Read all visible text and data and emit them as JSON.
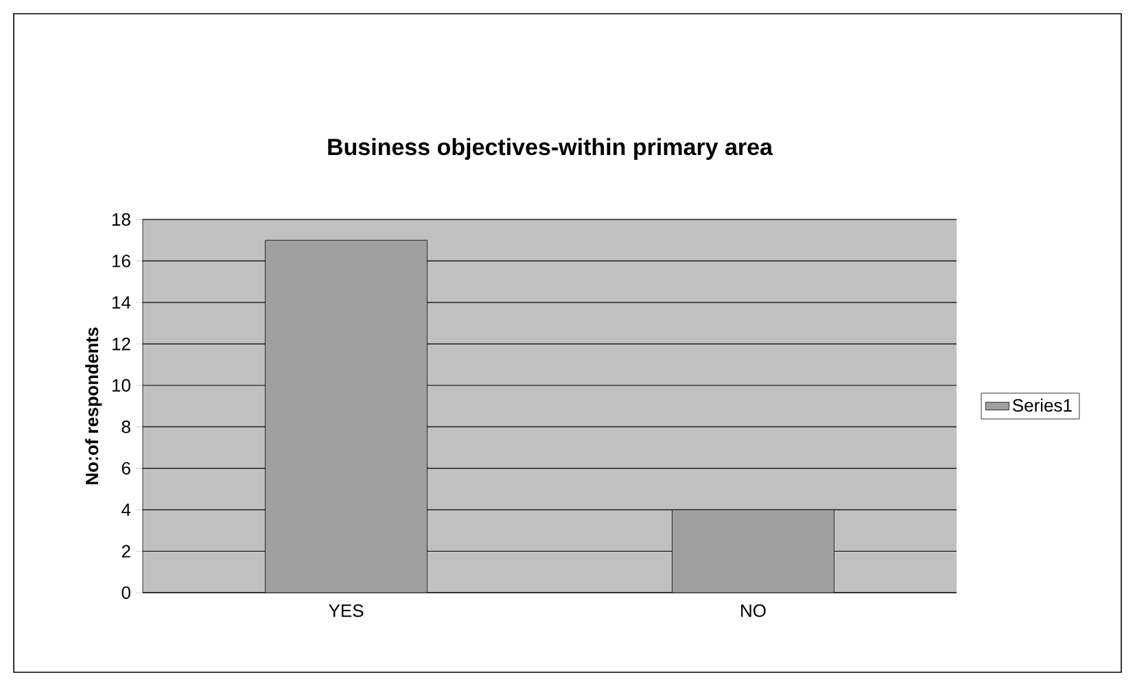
{
  "chart_data": {
    "type": "bar",
    "title": "Business objectives-within primary area",
    "ylabel": "No:of respondents",
    "categories": [
      "YES",
      "NO"
    ],
    "series": [
      {
        "name": "Series1",
        "color": "#a0a0a0",
        "values": [
          17,
          4
        ]
      }
    ],
    "ylim": [
      0,
      18
    ],
    "yticks": [
      0,
      2,
      4,
      6,
      8,
      10,
      12,
      14,
      16,
      18
    ],
    "grid": "y",
    "legend": "right"
  }
}
